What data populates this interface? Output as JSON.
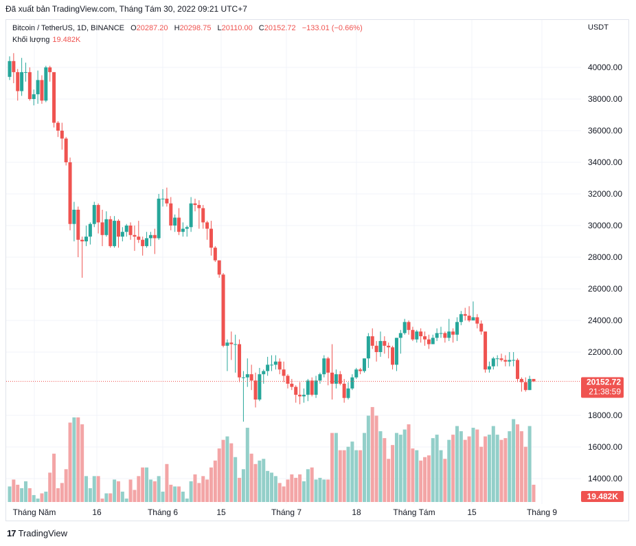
{
  "export_header": "Đã xuất bản TradingView.com, Tháng Tám 30, 2022 09:21 UTC+7",
  "legend": {
    "symbol": "Bitcoin / TetherUS, 1D, BINANCE",
    "o_label": "O",
    "o": "20287.20",
    "h_label": "H",
    "h": "20298.75",
    "l_label": "L",
    "l": "20110.00",
    "c_label": "C",
    "c": "20152.72",
    "change": "−133.01 (−0.66%)",
    "volume_label": "Khối lượng",
    "volume_value": "19.482K"
  },
  "currency": "USDT",
  "price_badge": {
    "price": "20152.72",
    "countdown": "21:38:59"
  },
  "volume_badge": "19.482K",
  "footer": {
    "logo": "17",
    "brand": "TradingView"
  },
  "colors": {
    "up": "#26a69a",
    "down": "#ef5350",
    "vol_up": "#93cfc9",
    "vol_down": "#f3a5a6",
    "grid": "#f0f3fa",
    "axis_text": "#131722"
  },
  "chart_data": {
    "type": "candlestick",
    "y_ticks": [
      "40000.00",
      "38000.00",
      "36000.00",
      "34000.00",
      "32000.00",
      "30000.00",
      "28000.00",
      "26000.00",
      "24000.00",
      "22000.00",
      "18000.00",
      "16000.00",
      "14000.00"
    ],
    "x_ticks": [
      "Tháng Năm",
      "16",
      "Tháng 6",
      "15",
      "Tháng 7",
      "18",
      "Tháng Tám",
      "15",
      "Tháng 9"
    ],
    "ylim": [
      12800,
      42000
    ],
    "last_price": 20152.72,
    "candles": [
      [
        39400,
        40400,
        40700,
        39200,
        12900
      ],
      [
        40400,
        39700,
        40900,
        39000,
        13300
      ],
      [
        39700,
        38500,
        39900,
        37900,
        13000
      ],
      [
        38500,
        39700,
        40600,
        38200,
        12800
      ],
      [
        39700,
        39700,
        40300,
        39100,
        13200
      ],
      [
        39700,
        38000,
        40000,
        37900,
        12800
      ],
      [
        38000,
        38300,
        38600,
        37600,
        12400
      ],
      [
        38300,
        39200,
        39800,
        37700,
        12200
      ],
      [
        39200,
        37900,
        39500,
        37700,
        12500
      ],
      [
        37900,
        40000,
        40100,
        37800,
        12600
      ],
      [
        40000,
        39700,
        40100,
        39100,
        13700
      ],
      [
        39700,
        36500,
        39700,
        36200,
        14800
      ],
      [
        36500,
        36000,
        36600,
        35600,
        12800
      ],
      [
        36000,
        35500,
        36500,
        34800,
        13100
      ],
      [
        35500,
        34000,
        35600,
        33800,
        13900
      ],
      [
        34000,
        30100,
        34300,
        29700,
        16600
      ],
      [
        30100,
        31000,
        31500,
        29000,
        16900
      ],
      [
        31000,
        29100,
        31200,
        28000,
        16900
      ],
      [
        29100,
        29000,
        29300,
        26700,
        16500
      ],
      [
        29000,
        29300,
        30000,
        28700,
        13500
      ],
      [
        29300,
        30100,
        30200,
        28800,
        12800
      ],
      [
        30100,
        31300,
        31500,
        29900,
        13500
      ],
      [
        31300,
        30200,
        31400,
        29500,
        13500
      ],
      [
        30200,
        29400,
        31000,
        28700,
        12200
      ],
      [
        29400,
        30400,
        30900,
        29300,
        12500
      ],
      [
        30400,
        28700,
        30600,
        28600,
        12500
      ],
      [
        28700,
        30300,
        30600,
        28600,
        13300
      ],
      [
        30300,
        29300,
        30400,
        28600,
        13200
      ],
      [
        29300,
        29600,
        29900,
        29000,
        12600
      ],
      [
        29600,
        30000,
        30100,
        29300,
        12200
      ],
      [
        30000,
        29400,
        30200,
        29100,
        13300
      ],
      [
        29400,
        29300,
        30000,
        28400,
        12700
      ],
      [
        29300,
        29100,
        30300,
        28900,
        13500
      ],
      [
        29100,
        28700,
        29300,
        28100,
        14000
      ],
      [
        28700,
        29200,
        29600,
        28600,
        14000
      ],
      [
        29200,
        29400,
        29600,
        28700,
        13300
      ],
      [
        29400,
        29200,
        29800,
        28200,
        13200
      ],
      [
        29200,
        31700,
        32000,
        29100,
        13500
      ],
      [
        31700,
        31700,
        32300,
        31200,
        12600
      ],
      [
        31700,
        31400,
        32400,
        31200,
        14200
      ],
      [
        31400,
        30000,
        31800,
        29700,
        13000
      ],
      [
        30000,
        30500,
        30700,
        29600,
        12900
      ],
      [
        30500,
        29600,
        31100,
        29400,
        12900
      ],
      [
        29600,
        29800,
        30200,
        29300,
        12600
      ],
      [
        29800,
        29900,
        30000,
        29300,
        12200
      ],
      [
        29900,
        31400,
        31800,
        29600,
        13200
      ],
      [
        31400,
        31300,
        31700,
        30900,
        13600
      ],
      [
        31300,
        31100,
        31600,
        29800,
        13100
      ],
      [
        31100,
        30200,
        31300,
        29800,
        13500
      ],
      [
        30200,
        29800,
        30300,
        29100,
        13300
      ],
      [
        29800,
        28600,
        30300,
        28100,
        14000
      ],
      [
        28600,
        27800,
        28700,
        27700,
        14400
      ],
      [
        27800,
        26900,
        27800,
        26700,
        15100
      ],
      [
        26900,
        22400,
        27000,
        22300,
        15600
      ],
      [
        22400,
        22600,
        22800,
        20800,
        15800
      ],
      [
        22600,
        22500,
        23300,
        21500,
        15400
      ],
      [
        22500,
        22500,
        23100,
        20700,
        14600
      ],
      [
        22500,
        20400,
        22800,
        20100,
        13400
      ],
      [
        20400,
        20400,
        20800,
        17600,
        13900
      ],
      [
        20400,
        20600,
        21600,
        19800,
        16300
      ],
      [
        20600,
        20200,
        21200,
        19600,
        14800
      ],
      [
        20200,
        19000,
        20700,
        18500,
        14200
      ],
      [
        19000,
        20600,
        21000,
        18900,
        14400
      ],
      [
        20600,
        20800,
        20900,
        20000,
        14500
      ],
      [
        20800,
        21200,
        21700,
        20500,
        13800
      ],
      [
        21200,
        21200,
        21800,
        20800,
        13700
      ],
      [
        21200,
        21400,
        21800,
        20900,
        13500
      ],
      [
        21400,
        20900,
        21600,
        20600,
        13100
      ],
      [
        20900,
        20500,
        21400,
        20100,
        12900
      ],
      [
        20500,
        20000,
        20600,
        19700,
        13300
      ],
      [
        20000,
        19800,
        20300,
        19600,
        13600
      ],
      [
        19800,
        19300,
        19900,
        18800,
        13400
      ],
      [
        19300,
        19200,
        20100,
        18700,
        13600
      ],
      [
        19200,
        19300,
        19700,
        18800,
        13200
      ],
      [
        19300,
        20200,
        20300,
        18900,
        13900
      ],
      [
        20200,
        19300,
        20400,
        19200,
        14000
      ],
      [
        19300,
        20200,
        20500,
        19100,
        13300
      ],
      [
        20200,
        20600,
        20700,
        20000,
        13400
      ],
      [
        20600,
        21600,
        21800,
        20400,
        13300
      ],
      [
        21600,
        20700,
        21700,
        19900,
        13300
      ],
      [
        20700,
        20000,
        22500,
        19000,
        16000
      ],
      [
        20000,
        20600,
        20900,
        19700,
        16000
      ],
      [
        20600,
        20000,
        20800,
        19900,
        15000
      ],
      [
        20000,
        19100,
        20300,
        18800,
        15000
      ],
      [
        19100,
        19700,
        20100,
        19000,
        15200
      ],
      [
        19700,
        20400,
        20600,
        19600,
        15500
      ],
      [
        20400,
        20900,
        21000,
        20300,
        15000
      ],
      [
        20900,
        20800,
        21000,
        20600,
        15000
      ],
      [
        20800,
        21600,
        21600,
        20700,
        16000
      ],
      [
        21600,
        23000,
        23200,
        21000,
        17000
      ],
      [
        23000,
        22400,
        23500,
        22200,
        17500
      ],
      [
        22400,
        22000,
        22700,
        21400,
        17000
      ],
      [
        22000,
        22700,
        23300,
        21700,
        16100
      ],
      [
        22700,
        22400,
        23000,
        21900,
        15700
      ],
      [
        22400,
        22300,
        22600,
        21600,
        14500
      ],
      [
        22300,
        21200,
        22400,
        20900,
        15300
      ],
      [
        21200,
        22900,
        22900,
        20800,
        16000
      ],
      [
        22900,
        23200,
        23400,
        21900,
        15900
      ],
      [
        23200,
        23900,
        24100,
        23100,
        16200
      ],
      [
        23900,
        23400,
        24000,
        23100,
        16500
      ],
      [
        23400,
        22800,
        23600,
        22700,
        15100
      ],
      [
        22800,
        23300,
        23400,
        22600,
        15000
      ],
      [
        23300,
        23000,
        23500,
        22600,
        14400
      ],
      [
        23000,
        22800,
        23300,
        22400,
        14600
      ],
      [
        22800,
        22500,
        23100,
        22200,
        14700
      ],
      [
        22500,
        22900,
        23100,
        22500,
        15700
      ],
      [
        22900,
        23200,
        23500,
        22700,
        15900
      ],
      [
        23200,
        23200,
        23600,
        22900,
        15000
      ],
      [
        23200,
        22900,
        23300,
        22600,
        14500
      ],
      [
        22900,
        23300,
        24100,
        22700,
        15600
      ],
      [
        23300,
        23100,
        23500,
        22600,
        15900
      ],
      [
        23100,
        23900,
        24200,
        22700,
        16400
      ],
      [
        23900,
        24400,
        24600,
        23700,
        16100
      ],
      [
        24400,
        24300,
        24800,
        24000,
        15600
      ],
      [
        24300,
        24000,
        24900,
        23900,
        15800
      ],
      [
        24000,
        24200,
        25200,
        24000,
        16300
      ],
      [
        24200,
        23800,
        24400,
        23500,
        16200
      ],
      [
        23800,
        23300,
        24000,
        23100,
        15200
      ],
      [
        23300,
        20900,
        23300,
        20700,
        15800
      ],
      [
        20900,
        21100,
        21400,
        20700,
        15900
      ],
      [
        21100,
        21600,
        21700,
        20900,
        16400
      ],
      [
        21600,
        21600,
        21800,
        21100,
        15900
      ],
      [
        21600,
        21500,
        21900,
        21400,
        15600
      ],
      [
        21500,
        21400,
        21800,
        21100,
        15700
      ],
      [
        21400,
        21500,
        22000,
        21100,
        16100
      ],
      [
        21500,
        21500,
        22000,
        21100,
        16800
      ],
      [
        21500,
        20300,
        21600,
        20100,
        16500
      ],
      [
        20300,
        20100,
        20400,
        19500,
        16100
      ],
      [
        20100,
        19600,
        20400,
        19500,
        15200
      ],
      [
        19600,
        20300,
        20500,
        19600,
        16400
      ],
      [
        20300,
        20150,
        20300,
        20110,
        13000
      ]
    ]
  }
}
